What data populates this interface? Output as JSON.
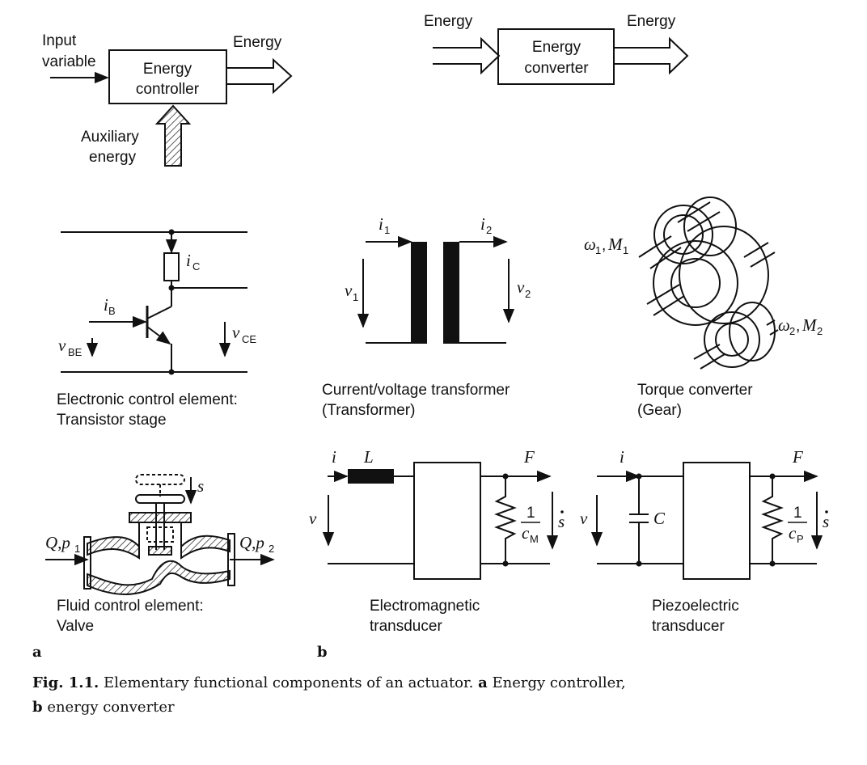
{
  "energy_controller": {
    "input_label_1": "Input",
    "input_label_2": "variable",
    "box_label_1": "Energy",
    "box_label_2": "controller",
    "output_label": "Energy",
    "aux_label_1": "Auxiliary",
    "aux_label_2": "energy"
  },
  "energy_converter": {
    "input_label": "Energy",
    "box_label_1": "Energy",
    "box_label_2": "converter",
    "output_label": "Energy"
  },
  "transistor": {
    "ic": "i",
    "ic_sub": "C",
    "ib": "i",
    "ib_sub": "B",
    "vbe": "v",
    "vbe_sub": "BE",
    "vce": "v",
    "vce_sub": "CE",
    "caption_1": "Electronic control element:",
    "caption_2": "Transistor stage"
  },
  "transformer": {
    "i1": "i",
    "i1_sub": "1",
    "i2": "i",
    "i2_sub": "2",
    "v1": "v",
    "v1_sub": "1",
    "v2": "v",
    "v2_sub": "2",
    "caption_1": "Current/voltage transformer",
    "caption_2": "(Transformer)"
  },
  "gear": {
    "in_label": "ω",
    "in_sub": "1",
    "in_m": "M",
    "in_m_sub": "1",
    "out_label": "ω",
    "out_sub": "2",
    "out_m": "M",
    "out_m_sub": "2",
    "caption_1": "Torque converter",
    "caption_2": "(Gear)"
  },
  "valve": {
    "s": "s",
    "in_q": "Q,p",
    "in_sub": "1",
    "out_q": "Q,p",
    "out_sub": "2",
    "caption_1": "Fluid control element:",
    "caption_2": "Valve"
  },
  "em_transducer": {
    "i": "i",
    "L": "L",
    "v": "v",
    "F": "F",
    "frac_num": "1",
    "frac_den": "c",
    "frac_den_sub": "M",
    "sdot": "s",
    "caption_1": "Electromagnetic",
    "caption_2": "transducer"
  },
  "piezo_transducer": {
    "i": "i",
    "v": "v",
    "C": "C",
    "F": "F",
    "frac_num": "1",
    "frac_den": "c",
    "frac_den_sub": "P",
    "sdot": "s",
    "caption_1": "Piezoelectric",
    "caption_2": "transducer"
  },
  "panel_labels": {
    "a": "a",
    "b": "b"
  },
  "caption": {
    "fig": "Fig. 1.1.",
    "text_1": " Elementary functional components of an actuator. ",
    "a": "a",
    "text_2": " Energy controller,",
    "b": "b",
    "text_3": " energy converter"
  }
}
